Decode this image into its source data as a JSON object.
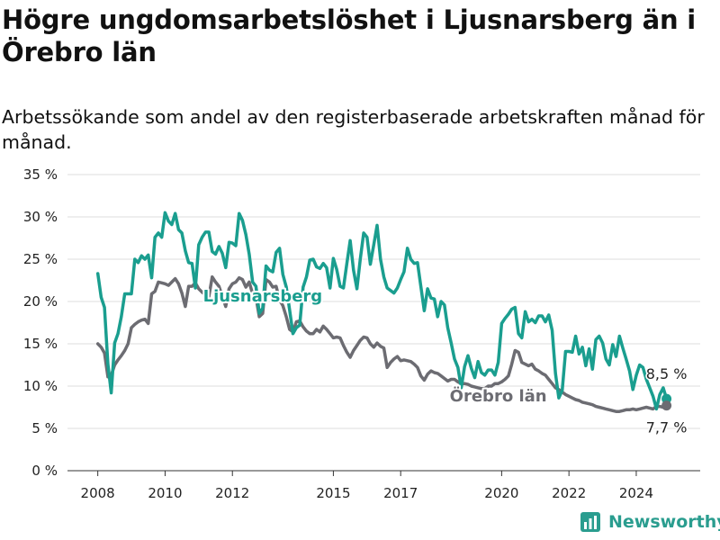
{
  "title": "Högre ungdomsarbetslöshet i Ljusnarsberg än i Örebro län",
  "subtitle": "Arbetssökande som andel av den registerbaserade arbetskraften månad för månad.",
  "logo_text": "Newsworthy",
  "chart_data": {
    "type": "line",
    "title": "Högre ungdomsarbetslöshet i Ljusnarsberg än i Örebro län",
    "subtitle": "Arbetssökande som andel av den registerbaserade arbetskraften månad för månad.",
    "ylim": [
      0,
      35
    ],
    "y_ticks": [
      0,
      5,
      10,
      15,
      20,
      25,
      30,
      35
    ],
    "y_tick_labels": [
      "0 %",
      "5 %",
      "10 %",
      "15 %",
      "20 %",
      "25 %",
      "30 %",
      "35 %"
    ],
    "x_ticks": [
      2008,
      2010,
      2012,
      2015,
      2017,
      2020,
      2022,
      2024
    ],
    "x_tick_labels": [
      "2008",
      "2010",
      "2012",
      "2015",
      "2017",
      "2020",
      "2022",
      "2024"
    ],
    "grid": "horizontal",
    "series": [
      {
        "name": "Ljusnarsberg",
        "color": "#1a9e8f",
        "end_label": "8,5 %",
        "x": [
          2008.0,
          2008.1,
          2008.2,
          2008.3,
          2008.4,
          2008.5,
          2008.6,
          2008.7,
          2008.8,
          2008.9,
          2009.0,
          2009.1,
          2009.2,
          2009.3,
          2009.4,
          2009.5,
          2009.6,
          2009.7,
          2009.8,
          2009.9,
          2010.0,
          2010.1,
          2010.2,
          2010.3,
          2010.4,
          2010.5,
          2010.6,
          2010.7,
          2010.8,
          2010.9,
          2011.0,
          2011.1,
          2011.2,
          2011.3,
          2011.4,
          2011.5,
          2011.6,
          2011.7,
          2011.8,
          2011.9,
          2012.0,
          2012.1,
          2012.2,
          2012.3,
          2012.4,
          2012.5,
          2012.6,
          2012.7,
          2012.8,
          2012.9,
          2013.0,
          2013.1,
          2013.2,
          2013.3,
          2013.4,
          2013.5,
          2013.6,
          2013.7,
          2013.8,
          2013.9,
          2014.0,
          2014.1,
          2014.2,
          2014.3,
          2014.4,
          2014.5,
          2014.6,
          2014.7,
          2014.8,
          2014.9,
          2015.0,
          2015.1,
          2015.2,
          2015.3,
          2015.4,
          2015.5,
          2015.6,
          2015.7,
          2015.8,
          2015.9,
          2016.0,
          2016.1,
          2016.2,
          2016.3,
          2016.4,
          2016.5,
          2016.6,
          2016.7,
          2016.8,
          2016.9,
          2017.0,
          2017.1,
          2017.2,
          2017.3,
          2017.4,
          2017.5,
          2017.6,
          2017.7,
          2017.8,
          2017.9,
          2018.0,
          2018.1,
          2018.2,
          2018.3,
          2018.4,
          2018.5,
          2018.6,
          2018.7,
          2018.8,
          2018.9,
          2019.0,
          2019.1,
          2019.2,
          2019.3,
          2019.4,
          2019.5,
          2019.6,
          2019.7,
          2019.8,
          2019.9,
          2020.0,
          2020.1,
          2020.2,
          2020.3,
          2020.4,
          2020.5,
          2020.6,
          2020.7,
          2020.8,
          2020.9,
          2021.0,
          2021.1,
          2021.2,
          2021.3,
          2021.4,
          2021.5,
          2021.6,
          2021.7,
          2021.8,
          2021.9,
          2022.0,
          2022.1,
          2022.2,
          2022.3,
          2022.4,
          2022.5,
          2022.6,
          2022.7,
          2022.8,
          2022.9,
          2023.0,
          2023.1,
          2023.2,
          2023.3,
          2023.4,
          2023.5,
          2023.6,
          2023.7,
          2023.8,
          2023.9,
          2024.0,
          2024.1,
          2024.2,
          2024.3,
          2024.4,
          2024.5,
          2024.6,
          2024.7,
          2024.8,
          2024.9
        ],
        "values": [
          23.3,
          20.5,
          19.3,
          12.6,
          9.2,
          15.1,
          16.2,
          18.2,
          20.9,
          20.9,
          20.9,
          25.0,
          24.6,
          25.4,
          25.0,
          25.5,
          22.8,
          27.6,
          28.1,
          27.6,
          30.5,
          29.5,
          29.1,
          30.4,
          28.5,
          28.1,
          26.0,
          24.6,
          24.5,
          21.6,
          26.7,
          27.6,
          28.2,
          28.2,
          25.9,
          25.6,
          26.5,
          25.7,
          24.0,
          27.0,
          26.9,
          26.6,
          30.4,
          29.6,
          27.9,
          25.6,
          22.3,
          21.8,
          18.6,
          19.2,
          24.2,
          23.7,
          23.5,
          25.8,
          26.3,
          23.2,
          21.7,
          19.0,
          16.2,
          16.9,
          17.2,
          21.7,
          22.9,
          24.9,
          25.0,
          24.1,
          23.9,
          24.5,
          24.0,
          21.6,
          25.1,
          23.8,
          21.8,
          21.6,
          24.5,
          27.2,
          23.7,
          21.5,
          25.0,
          28.1,
          27.6,
          24.4,
          26.7,
          29.0,
          25.0,
          22.9,
          21.6,
          21.3,
          21.0,
          21.6,
          22.6,
          23.5,
          26.3,
          25.0,
          24.5,
          24.6,
          21.8,
          18.9,
          21.5,
          20.4,
          20.3,
          18.2,
          20.0,
          19.6,
          16.9,
          15.1,
          13.2,
          12.2,
          9.8,
          12.3,
          13.6,
          12.1,
          11.0,
          12.9,
          11.6,
          11.3,
          11.9,
          11.9,
          11.3,
          12.8,
          17.4,
          18.0,
          18.5,
          19.1,
          19.3,
          16.2,
          15.7,
          18.8,
          17.6,
          17.9,
          17.5,
          18.3,
          18.3,
          17.6,
          18.4,
          16.6,
          11.5,
          8.6,
          9.5,
          14.1,
          14.1,
          14.0,
          15.9,
          13.8,
          14.6,
          12.4,
          14.4,
          12.0,
          15.5,
          15.9,
          15.1,
          13.2,
          12.5,
          14.9,
          13.5,
          15.9,
          14.5,
          13.2,
          11.8,
          9.6,
          11.3,
          12.5,
          12.2,
          10.8,
          9.8,
          8.8,
          7.3,
          9.0,
          9.8,
          8.5
        ]
      },
      {
        "name": "Örebro län",
        "color": "#6c6c72",
        "end_label": "7,7 %",
        "x": [
          2008.0,
          2008.1,
          2008.2,
          2008.3,
          2008.4,
          2008.5,
          2008.6,
          2008.7,
          2008.8,
          2008.9,
          2009.0,
          2009.1,
          2009.2,
          2009.3,
          2009.4,
          2009.5,
          2009.6,
          2009.7,
          2009.8,
          2009.9,
          2010.0,
          2010.1,
          2010.2,
          2010.3,
          2010.4,
          2010.5,
          2010.6,
          2010.7,
          2010.8,
          2010.9,
          2011.0,
          2011.1,
          2011.2,
          2011.3,
          2011.4,
          2011.5,
          2011.6,
          2011.7,
          2011.8,
          2011.9,
          2012.0,
          2012.1,
          2012.2,
          2012.3,
          2012.4,
          2012.5,
          2012.6,
          2012.7,
          2012.8,
          2012.9,
          2013.0,
          2013.1,
          2013.2,
          2013.3,
          2013.4,
          2013.5,
          2013.6,
          2013.7,
          2013.8,
          2013.9,
          2014.0,
          2014.1,
          2014.2,
          2014.3,
          2014.4,
          2014.5,
          2014.6,
          2014.7,
          2014.8,
          2014.9,
          2015.0,
          2015.1,
          2015.2,
          2015.3,
          2015.4,
          2015.5,
          2015.6,
          2015.7,
          2015.8,
          2015.9,
          2016.0,
          2016.1,
          2016.2,
          2016.3,
          2016.4,
          2016.5,
          2016.6,
          2016.7,
          2016.8,
          2016.9,
          2017.0,
          2017.1,
          2017.2,
          2017.3,
          2017.4,
          2017.5,
          2017.6,
          2017.7,
          2017.8,
          2017.9,
          2018.0,
          2018.1,
          2018.2,
          2018.3,
          2018.4,
          2018.5,
          2018.6,
          2018.7,
          2018.8,
          2018.9,
          2019.0,
          2019.1,
          2019.2,
          2019.3,
          2019.4,
          2019.5,
          2019.6,
          2019.7,
          2019.8,
          2019.9,
          2020.0,
          2020.1,
          2020.2,
          2020.3,
          2020.4,
          2020.5,
          2020.6,
          2020.7,
          2020.8,
          2020.9,
          2021.0,
          2021.1,
          2021.2,
          2021.3,
          2021.4,
          2021.5,
          2021.6,
          2021.7,
          2021.8,
          2021.9,
          2022.0,
          2022.1,
          2022.2,
          2022.3,
          2022.4,
          2022.5,
          2022.6,
          2022.7,
          2022.8,
          2022.9,
          2023.0,
          2023.1,
          2023.2,
          2023.3,
          2023.4,
          2023.5,
          2023.6,
          2023.7,
          2023.8,
          2023.9,
          2024.0,
          2024.1,
          2024.2,
          2024.3,
          2024.4,
          2024.5,
          2024.6,
          2024.7,
          2024.8,
          2024.9
        ],
        "values": [
          15.0,
          14.6,
          13.9,
          11.1,
          11.3,
          12.5,
          13.1,
          13.6,
          14.2,
          15.0,
          16.9,
          17.3,
          17.6,
          17.8,
          17.9,
          17.4,
          20.9,
          21.2,
          22.3,
          22.2,
          22.1,
          21.9,
          22.3,
          22.7,
          22.1,
          21.0,
          19.4,
          21.8,
          21.8,
          22.2,
          21.5,
          21.1,
          20.8,
          20.6,
          22.9,
          22.3,
          21.8,
          20.6,
          19.4,
          21.5,
          22.1,
          22.3,
          22.8,
          22.6,
          21.7,
          22.3,
          20.9,
          20.5,
          18.2,
          18.6,
          22.6,
          22.3,
          21.7,
          21.8,
          20.2,
          19.5,
          18.2,
          16.7,
          16.4,
          17.6,
          17.7,
          17.0,
          16.5,
          16.2,
          16.2,
          16.7,
          16.4,
          17.1,
          16.7,
          16.2,
          15.7,
          15.8,
          15.7,
          14.8,
          14.0,
          13.4,
          14.2,
          14.8,
          15.4,
          15.8,
          15.7,
          15.0,
          14.6,
          15.1,
          14.7,
          14.5,
          12.2,
          12.8,
          13.2,
          13.5,
          13.0,
          13.1,
          13.0,
          12.9,
          12.6,
          12.2,
          11.2,
          10.7,
          11.4,
          11.8,
          11.6,
          11.5,
          11.2,
          10.9,
          10.6,
          10.8,
          10.8,
          10.5,
          10.3,
          10.3,
          10.2,
          10.0,
          9.9,
          9.8,
          9.7,
          9.7,
          10.0,
          10.0,
          10.3,
          10.3,
          10.5,
          10.8,
          11.2,
          12.6,
          14.2,
          14.0,
          12.8,
          12.6,
          12.4,
          12.6,
          12.0,
          11.8,
          11.5,
          11.3,
          10.8,
          10.3,
          9.8,
          9.6,
          9.3,
          9.0,
          8.8,
          8.6,
          8.4,
          8.3,
          8.1,
          8.0,
          7.9,
          7.8,
          7.6,
          7.5,
          7.4,
          7.3,
          7.2,
          7.1,
          7.0,
          7.0,
          7.1,
          7.2,
          7.2,
          7.3,
          7.2,
          7.3,
          7.4,
          7.5,
          7.4,
          7.3,
          7.6,
          7.6,
          7.5,
          7.7
        ]
      }
    ],
    "series_labels": [
      {
        "text": "Ljusnarsberg",
        "color": "#1a9e8f"
      },
      {
        "text": "Örebro län",
        "color": "#6c6c72"
      }
    ]
  }
}
